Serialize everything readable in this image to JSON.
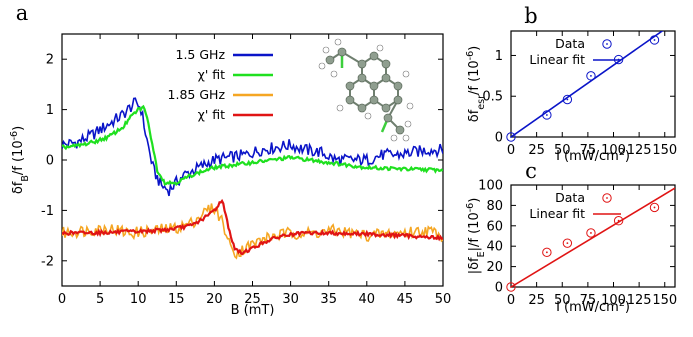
{
  "chart_data": [
    {
      "panel_label": "a",
      "type": "line",
      "xlabel": "B (mT)",
      "ylabel": "δf_B/f (10^-6)",
      "xlim": [
        0,
        50
      ],
      "ylim": [
        -2.5,
        2.5
      ],
      "xticks": [
        0,
        5,
        10,
        15,
        20,
        25,
        30,
        35,
        40,
        45,
        50
      ],
      "yticks": [
        -2,
        -1,
        0,
        1,
        2
      ],
      "grid": false,
      "legend_position": "top-center",
      "series": [
        {
          "name": "1.5 GHz",
          "color": "#0a14c8",
          "style": "noisy",
          "x": [
            0,
            2,
            4,
            6,
            8,
            9,
            9.8,
            10.4,
            11,
            12,
            13,
            14,
            15,
            16,
            18,
            20,
            22,
            24,
            26,
            28,
            30,
            32,
            34,
            36,
            38,
            40,
            42,
            44,
            46,
            48,
            50
          ],
          "y": [
            0.3,
            0.35,
            0.5,
            0.7,
            0.9,
            1.05,
            1.15,
            1.0,
            0.5,
            -0.2,
            -0.5,
            -0.6,
            -0.45,
            -0.3,
            -0.15,
            0.0,
            0.05,
            0.1,
            0.2,
            0.25,
            0.3,
            0.2,
            0.15,
            0.0,
            0.0,
            0.0,
            0.1,
            0.1,
            0.15,
            0.2,
            0.2
          ]
        },
        {
          "name": "χ' fit",
          "color": "#1fe01f",
          "style": "smooth",
          "x": [
            0,
            2,
            4,
            6,
            8,
            9,
            10,
            10.8,
            11.5,
            12.5,
            13.5,
            15,
            17,
            20,
            25,
            30,
            35,
            40,
            45,
            50
          ],
          "y": [
            0.25,
            0.28,
            0.35,
            0.45,
            0.65,
            0.85,
            1.0,
            1.05,
            0.6,
            -0.2,
            -0.45,
            -0.45,
            -0.3,
            -0.15,
            -0.05,
            0.05,
            -0.05,
            -0.15,
            -0.18,
            -0.2
          ]
        },
        {
          "name": "1.85 GHz",
          "color": "#f5a623",
          "style": "noisy",
          "x": [
            0,
            3,
            6,
            9,
            12,
            15,
            17,
            19,
            20,
            21,
            22,
            23,
            24,
            26,
            28,
            30,
            33,
            36,
            40,
            44,
            48,
            50
          ],
          "y": [
            -1.45,
            -1.4,
            -1.35,
            -1.45,
            -1.4,
            -1.35,
            -1.25,
            -1.0,
            -0.95,
            -1.2,
            -1.7,
            -1.85,
            -1.75,
            -1.6,
            -1.5,
            -1.45,
            -1.45,
            -1.4,
            -1.5,
            -1.45,
            -1.4,
            -1.5
          ]
        },
        {
          "name": "χ' fit",
          "color": "#e01414",
          "style": "smooth",
          "x": [
            0,
            5,
            10,
            14,
            17,
            19,
            20.3,
            21,
            21.8,
            22.6,
            23.5,
            25,
            27,
            29,
            32,
            36,
            40,
            45,
            50
          ],
          "y": [
            -1.45,
            -1.44,
            -1.42,
            -1.38,
            -1.3,
            -1.12,
            -0.95,
            -0.78,
            -1.3,
            -1.75,
            -1.85,
            -1.75,
            -1.6,
            -1.5,
            -1.45,
            -1.45,
            -1.47,
            -1.5,
            -1.55
          ]
        }
      ]
    },
    {
      "panel_label": "b",
      "type": "scatter",
      "xlabel": "I (mW/cm²)",
      "ylabel": "δf_esr/f (10^-6)",
      "xlim": [
        0,
        160
      ],
      "ylim": [
        0,
        1.3
      ],
      "xticks": [
        0,
        25,
        50,
        75,
        100,
        125,
        150
      ],
      "yticks": [
        0,
        0.5,
        1
      ],
      "legend_position": "top-left",
      "series": [
        {
          "name": "Data",
          "color": "#0a14c8",
          "marker": "circle",
          "x": [
            0,
            35,
            55,
            78,
            105,
            140
          ],
          "y": [
            0,
            0.27,
            0.46,
            0.75,
            0.95,
            1.19
          ]
        },
        {
          "name": "Linear fit",
          "color": "#0a14c8",
          "marker": "line",
          "x": [
            0,
            160
          ],
          "y": [
            0,
            1.41
          ]
        }
      ]
    },
    {
      "panel_label": "c",
      "type": "scatter",
      "xlabel": "I (mW/cm²)",
      "ylabel": "|δf_E|/f (10^-6)",
      "xlim": [
        0,
        160
      ],
      "ylim": [
        0,
        100
      ],
      "xticks": [
        0,
        25,
        50,
        75,
        100,
        125,
        150
      ],
      "yticks": [
        0,
        20,
        40,
        60,
        80,
        100
      ],
      "legend_position": "top-left",
      "series": [
        {
          "name": "Data",
          "color": "#e01414",
          "marker": "circle",
          "x": [
            0,
            35,
            55,
            78,
            105,
            140
          ],
          "y": [
            0,
            34,
            43,
            53,
            65,
            78
          ]
        },
        {
          "name": "Linear fit",
          "color": "#e01414",
          "marker": "line",
          "x": [
            0,
            160
          ],
          "y": [
            0,
            97
          ]
        }
      ]
    }
  ],
  "inset": {
    "icon": "molecule-structure-icon",
    "color": "#8a9a8a",
    "accent": "#3ccf3c"
  }
}
